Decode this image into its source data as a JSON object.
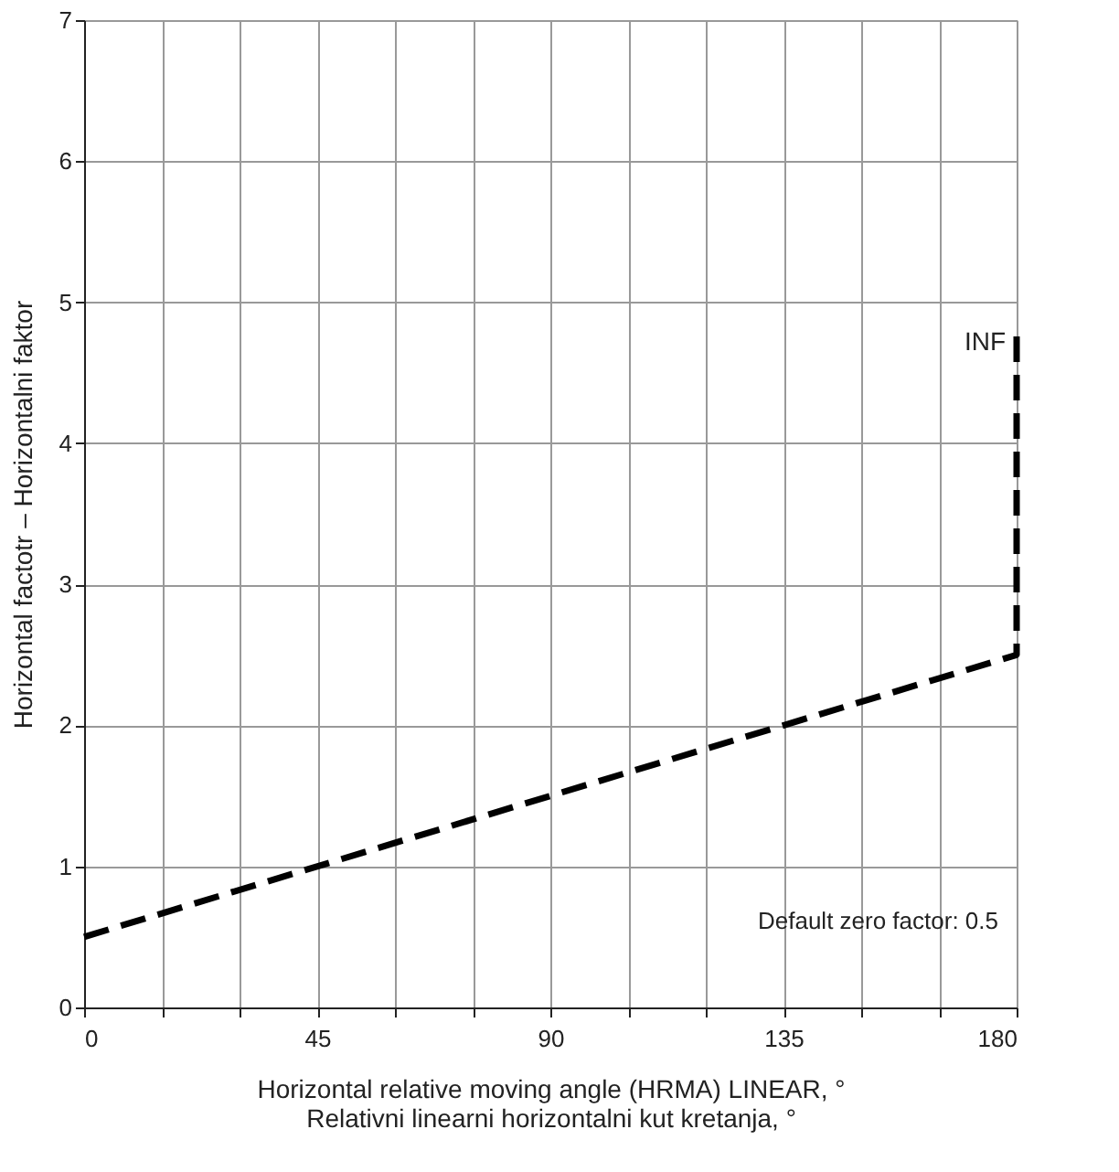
{
  "chart_data": {
    "type": "line",
    "xlabel": "Horizontal relative moving angle (HRMA) LINEAR, °\nRelativni linearni horizontalni kut kretanja, °",
    "ylabel": "Horizontal factotr – Horizontalni faktor",
    "x": [
      0,
      90,
      180,
      180
    ],
    "series": [
      {
        "color": "#000000",
        "values": [
          0.5,
          1.5,
          2.5,
          4.8
        ]
      }
    ],
    "line_style": "dashed",
    "marker": "none",
    "grid": true,
    "xlim": [
      0,
      180
    ],
    "ylim": [
      0,
      7
    ],
    "xticks": [
      0,
      {
        "value": 15,
        "label": null
      },
      {
        "value": 30,
        "label": null
      },
      45,
      {
        "value": 60,
        "label": null
      },
      {
        "value": 75,
        "label": null
      },
      90,
      {
        "value": 105,
        "label": null
      },
      {
        "value": 120,
        "label": null
      },
      135,
      {
        "value": 150,
        "label": null
      },
      {
        "value": 165,
        "label": null
      },
      180
    ],
    "yticks": [
      0,
      1,
      2,
      3,
      4,
      5,
      6,
      7
    ],
    "annotations": [
      {
        "text": "INF",
        "x": 180,
        "y": 4.8
      },
      "Default zero factor: 0.5"
    ]
  }
}
